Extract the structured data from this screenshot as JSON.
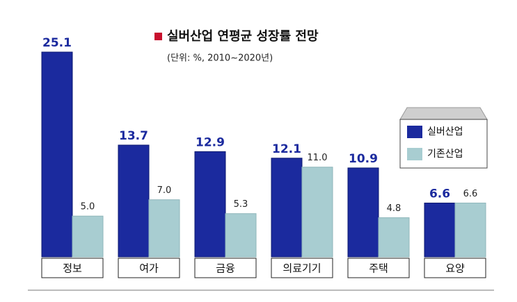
{
  "chart_data": {
    "type": "bar",
    "title": "실버산업 연평균 성장률 전망",
    "subtitle": "(단위: %, 2010~2020년)",
    "categories": [
      "정보",
      "여가",
      "금융",
      "의료기기",
      "주택",
      "요양"
    ],
    "series": [
      {
        "name": "실버산업",
        "color": "#1b2a9e",
        "values": [
          25.1,
          13.7,
          12.9,
          12.1,
          10.9,
          6.6
        ],
        "value_labels": [
          "25.1",
          "13.7",
          "12.9",
          "12.1",
          "10.9",
          "6.6"
        ]
      },
      {
        "name": "기존산업",
        "color": "#a8cdd1",
        "values": [
          5.0,
          7.0,
          5.3,
          11.0,
          4.8,
          6.6
        ],
        "value_labels": [
          "5.0",
          "7.0",
          "5.3",
          "11.0",
          "4.8",
          "6.6"
        ]
      }
    ]
  }
}
